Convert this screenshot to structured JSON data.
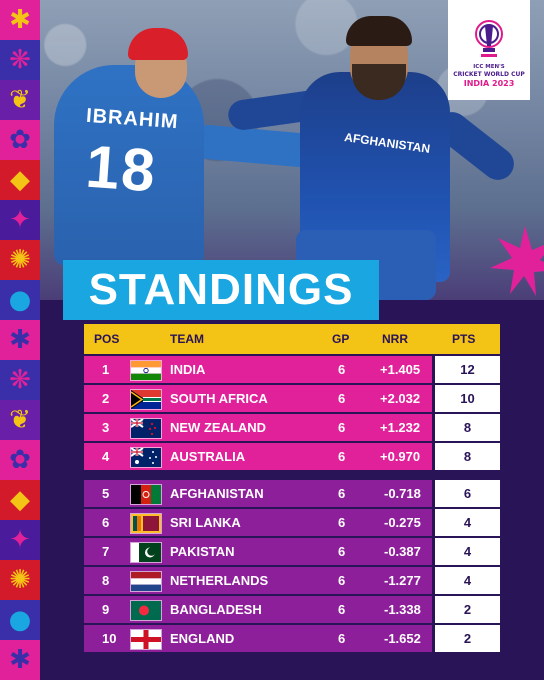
{
  "title": "STANDINGS",
  "logo": {
    "line1": "ICC MEN'S",
    "line2": "CRICKET WORLD CUP",
    "line3": "INDIA 2023"
  },
  "photo": {
    "jersey_name": "IBRAHIM",
    "jersey_number": "18",
    "jersey_text": "AFGHANISTAN"
  },
  "columns": {
    "pos": "POS",
    "team": "TEAM",
    "gp": "GP",
    "nrr": "NRR",
    "pts": "PTS"
  },
  "rows": [
    {
      "pos": "1",
      "team": "INDIA",
      "gp": "6",
      "nrr": "+1.405",
      "pts": "12"
    },
    {
      "pos": "2",
      "team": "SOUTH AFRICA",
      "gp": "6",
      "nrr": "+2.032",
      "pts": "10"
    },
    {
      "pos": "3",
      "team": "NEW ZEALAND",
      "gp": "6",
      "nrr": "+1.232",
      "pts": "8"
    },
    {
      "pos": "4",
      "team": "AUSTRALIA",
      "gp": "6",
      "nrr": "+0.970",
      "pts": "8"
    },
    {
      "pos": "5",
      "team": "AFGHANISTAN",
      "gp": "6",
      "nrr": "-0.718",
      "pts": "6"
    },
    {
      "pos": "6",
      "team": "SRI LANKA",
      "gp": "6",
      "nrr": "-0.275",
      "pts": "4"
    },
    {
      "pos": "7",
      "team": "PAKISTAN",
      "gp": "6",
      "nrr": "-0.387",
      "pts": "4"
    },
    {
      "pos": "8",
      "team": "NETHERLANDS",
      "gp": "6",
      "nrr": "-1.277",
      "pts": "4"
    },
    {
      "pos": "9",
      "team": "BANGLADESH",
      "gp": "6",
      "nrr": "-1.338",
      "pts": "2"
    },
    {
      "pos": "10",
      "team": "ENGLAND",
      "gp": "6",
      "nrr": "-1.652",
      "pts": "2"
    }
  ],
  "colors": {
    "top4_row": "#e0219a",
    "lower_row": "#8e1f9a",
    "header": "#f3c315",
    "title_box": "#1aa6e0",
    "background": "#2a1458"
  }
}
